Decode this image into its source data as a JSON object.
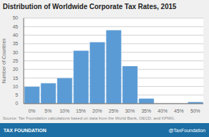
{
  "chart_data": {
    "type": "bar",
    "title": "Distribution of Worldwide Corporate Tax Rates, 2015",
    "ylabel": "Number of Countries",
    "categories": [
      "0%",
      "5%",
      "10%",
      "15%",
      "20%",
      "25%",
      "30%",
      "35%",
      "40%",
      "45%",
      "50%"
    ],
    "values": [
      10,
      12,
      15,
      31,
      36,
      43,
      22,
      3,
      0,
      0,
      1
    ],
    "color": "#5b9bd5",
    "ylim": [
      0,
      50
    ],
    "yticks": [
      0,
      5,
      10,
      15,
      20,
      25,
      30,
      35,
      40,
      45,
      50
    ],
    "grid": true,
    "annotations": [
      "Source: Tax Foundation calculations based on data from the World Bank, OECD, and KPMG.",
      "TAX FOUNDATION",
      "@TaxFoundation"
    ]
  }
}
